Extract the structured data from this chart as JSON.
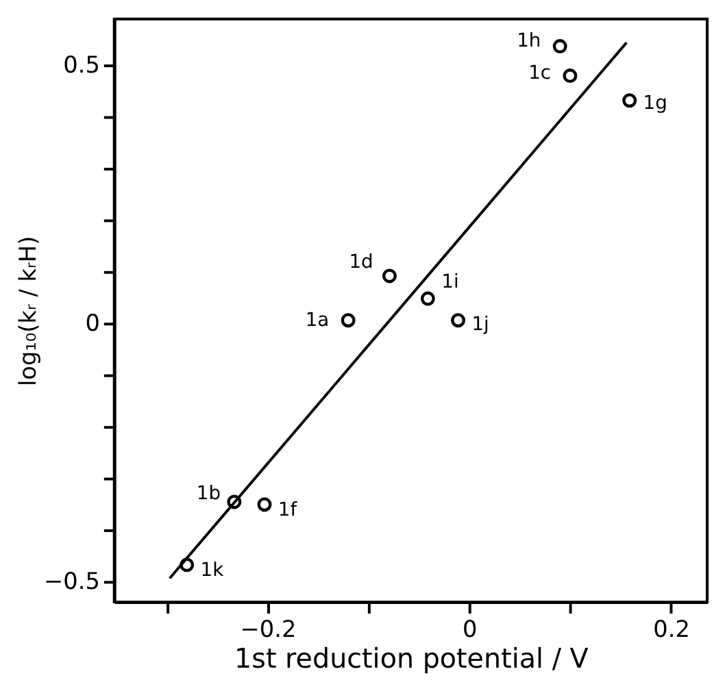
{
  "chart_data": {
    "type": "scatter",
    "xlabel": "1st reduction potential / V",
    "ylabel": "log₁₀(kᵣ / kᵣH)",
    "xlim": [
      -0.352,
      0.236
    ],
    "ylim": [
      -0.54,
      0.59
    ],
    "xticks": [
      {
        "value": -0.3,
        "label": null
      },
      -0.2,
      {
        "value": -0.1,
        "label": null
      },
      0,
      {
        "value": 0.1,
        "label": null
      },
      0.2
    ],
    "yticks": [
      -0.5,
      {
        "value": -0.4,
        "label": null
      },
      {
        "value": -0.3,
        "label": null
      },
      {
        "value": -0.2,
        "label": null
      },
      {
        "value": -0.1,
        "label": null
      },
      0,
      {
        "value": 0.1,
        "label": null
      },
      {
        "value": 0.2,
        "label": null
      },
      {
        "value": 0.3,
        "label": null
      },
      {
        "value": 0.4,
        "label": null
      },
      0.5
    ],
    "grid": false,
    "marker": "circle",
    "series": [
      {
        "color": "#000000",
        "x": [
          0.09,
          0.1,
          0.159,
          -0.079,
          -0.041,
          -0.12,
          -0.011,
          -0.233,
          -0.203,
          -0.28
        ],
        "values": [
          0.537,
          0.48,
          0.432,
          0.092,
          0.048,
          0.006,
          0.006,
          -0.346,
          -0.351,
          -0.468
        ]
      },
      {
        "type": "line",
        "color": "#000000",
        "line_style": "solid",
        "marker": "none",
        "x": [
          -0.297,
          0.156
        ],
        "values": [
          -0.494,
          0.544
        ]
      }
    ],
    "annotations": [
      {
        "text": "1h",
        "x": 0.09,
        "y": 0.537
      },
      {
        "text": "1c",
        "x": 0.1,
        "y": 0.48
      },
      {
        "text": "1g",
        "x": 0.159,
        "y": 0.432
      },
      {
        "text": "1d",
        "x": -0.079,
        "y": 0.092
      },
      {
        "text": "1i",
        "x": -0.041,
        "y": 0.048
      },
      {
        "text": "1a",
        "x": -0.12,
        "y": 0.006
      },
      {
        "text": "1j",
        "x": -0.011,
        "y": 0.006
      },
      {
        "text": "1b",
        "x": -0.233,
        "y": -0.346
      },
      {
        "text": "1f",
        "x": -0.203,
        "y": -0.351
      },
      {
        "text": "1k",
        "x": -0.28,
        "y": -0.468
      }
    ]
  }
}
